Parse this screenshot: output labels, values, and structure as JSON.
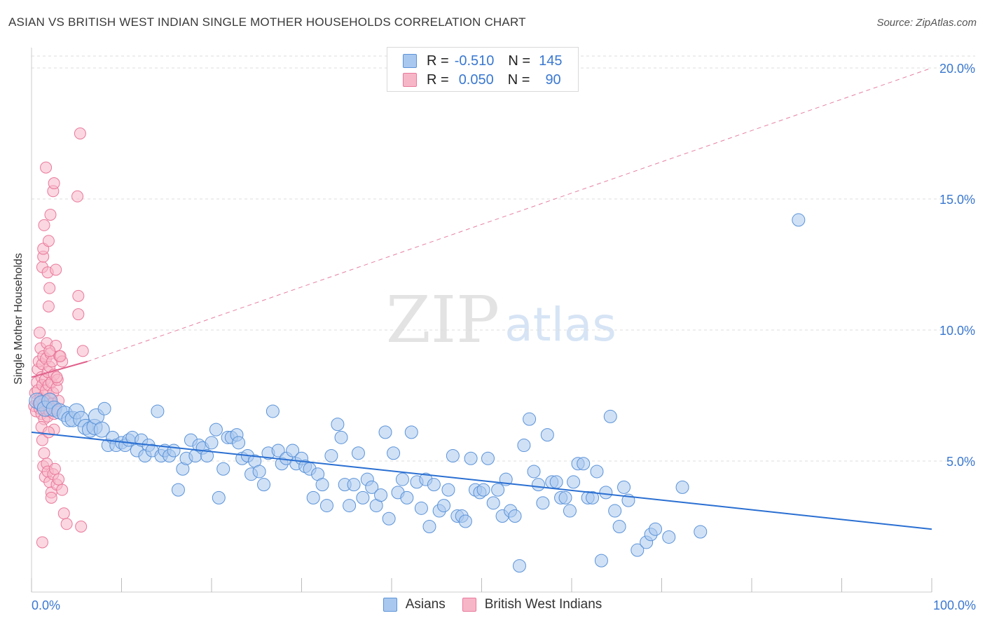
{
  "title": "ASIAN VS BRITISH WEST INDIAN SINGLE MOTHER HOUSEHOLDS CORRELATION CHART",
  "source": "Source: ZipAtlas.com",
  "watermark": {
    "zip": "ZIP",
    "atlas": "atlas"
  },
  "legend_top": {
    "rows": [
      {
        "r_label": "R =",
        "r_value": "-0.510",
        "n_label": "N =",
        "n_value": "145"
      },
      {
        "r_label": "R =",
        "r_value": "0.050",
        "n_label": "N =",
        "n_value": "90"
      }
    ]
  },
  "legend_bottom": {
    "asians": "Asians",
    "bwi": "British West Indians"
  },
  "colors": {
    "asian_fill": "#a9c8ef",
    "asian_stroke": "#5b93d8",
    "asian_line": "#2a6fd2",
    "bwi_fill": "#f7b6c8",
    "bwi_stroke": "#e9799b",
    "bwi_line": "#e0608b",
    "axis_label": "#3a78d0",
    "grid": "#dddddd"
  },
  "chart_data": {
    "type": "scatter",
    "title": "ASIAN VS BRITISH WEST INDIAN SINGLE MOTHER HOUSEHOLDS CORRELATION CHART",
    "xlabel": "",
    "ylabel": "Single Mother Households",
    "xlim": [
      0,
      100
    ],
    "ylim": [
      0,
      20
    ],
    "x_tick_labels": [
      "0.0%",
      "100.0%"
    ],
    "y_ticks": [
      5,
      10,
      15,
      20
    ],
    "y_tick_labels": [
      "5.0%",
      "10.0%",
      "15.0%",
      "20.0%"
    ],
    "grid": true,
    "legend": "top-center",
    "series": [
      {
        "name": "Asians",
        "r": -0.51,
        "n": 145,
        "trend": {
          "x": [
            0,
            100
          ],
          "y": [
            6.1,
            2.4
          ],
          "style": "solid"
        },
        "points": [
          [
            0.6,
            7.3
          ],
          [
            1.1,
            7.2
          ],
          [
            1.5,
            7.0
          ],
          [
            2.0,
            7.3
          ],
          [
            2.5,
            7.0
          ],
          [
            3.1,
            6.9
          ],
          [
            3.7,
            6.8
          ],
          [
            4.2,
            6.6
          ],
          [
            4.6,
            6.6
          ],
          [
            5.0,
            6.9
          ],
          [
            5.5,
            6.6
          ],
          [
            6.0,
            6.3
          ],
          [
            6.5,
            6.2
          ],
          [
            7.0,
            6.3
          ],
          [
            7.2,
            6.7
          ],
          [
            7.8,
            6.2
          ],
          [
            8.1,
            7.0
          ],
          [
            8.5,
            5.6
          ],
          [
            9.0,
            5.9
          ],
          [
            9.4,
            5.6
          ],
          [
            10.0,
            5.7
          ],
          [
            10.4,
            5.6
          ],
          [
            10.8,
            5.8
          ],
          [
            11.2,
            5.9
          ],
          [
            11.7,
            5.4
          ],
          [
            12.2,
            5.8
          ],
          [
            12.6,
            5.2
          ],
          [
            13.0,
            5.6
          ],
          [
            13.4,
            5.4
          ],
          [
            14.0,
            6.9
          ],
          [
            14.4,
            5.2
          ],
          [
            14.8,
            5.4
          ],
          [
            15.3,
            5.2
          ],
          [
            15.8,
            5.4
          ],
          [
            16.3,
            3.9
          ],
          [
            16.8,
            4.7
          ],
          [
            17.2,
            5.1
          ],
          [
            17.7,
            5.8
          ],
          [
            18.2,
            5.2
          ],
          [
            18.6,
            5.6
          ],
          [
            19.0,
            5.5
          ],
          [
            19.5,
            5.2
          ],
          [
            20.0,
            5.7
          ],
          [
            20.5,
            6.2
          ],
          [
            20.8,
            3.6
          ],
          [
            21.3,
            4.7
          ],
          [
            21.8,
            5.9
          ],
          [
            22.2,
            5.9
          ],
          [
            22.8,
            6.0
          ],
          [
            23.0,
            5.7
          ],
          [
            23.4,
            5.1
          ],
          [
            24.0,
            5.2
          ],
          [
            24.4,
            4.5
          ],
          [
            24.8,
            5.0
          ],
          [
            25.3,
            4.6
          ],
          [
            25.8,
            4.1
          ],
          [
            26.3,
            5.3
          ],
          [
            26.8,
            6.9
          ],
          [
            27.4,
            5.4
          ],
          [
            27.8,
            4.9
          ],
          [
            28.3,
            5.1
          ],
          [
            29.0,
            5.4
          ],
          [
            29.4,
            4.9
          ],
          [
            30.0,
            5.1
          ],
          [
            30.4,
            4.8
          ],
          [
            30.9,
            4.7
          ],
          [
            31.3,
            3.6
          ],
          [
            31.8,
            4.5
          ],
          [
            32.3,
            4.1
          ],
          [
            32.8,
            3.3
          ],
          [
            33.3,
            5.2
          ],
          [
            34.0,
            6.4
          ],
          [
            34.4,
            5.9
          ],
          [
            34.8,
            4.1
          ],
          [
            35.3,
            3.3
          ],
          [
            35.8,
            4.1
          ],
          [
            36.3,
            5.3
          ],
          [
            36.8,
            3.6
          ],
          [
            37.3,
            4.3
          ],
          [
            37.8,
            4.0
          ],
          [
            38.3,
            3.3
          ],
          [
            38.8,
            3.7
          ],
          [
            39.3,
            6.1
          ],
          [
            39.7,
            2.8
          ],
          [
            40.2,
            5.3
          ],
          [
            40.7,
            3.8
          ],
          [
            41.2,
            4.3
          ],
          [
            41.7,
            3.6
          ],
          [
            42.2,
            6.1
          ],
          [
            42.8,
            4.2
          ],
          [
            43.3,
            3.2
          ],
          [
            43.8,
            4.3
          ],
          [
            44.2,
            2.5
          ],
          [
            44.7,
            4.1
          ],
          [
            45.3,
            3.1
          ],
          [
            45.8,
            3.3
          ],
          [
            46.3,
            3.9
          ],
          [
            46.8,
            5.2
          ],
          [
            47.3,
            2.9
          ],
          [
            47.8,
            2.9
          ],
          [
            48.2,
            2.7
          ],
          [
            48.8,
            5.1
          ],
          [
            49.3,
            3.9
          ],
          [
            49.8,
            3.8
          ],
          [
            50.2,
            3.9
          ],
          [
            50.7,
            5.1
          ],
          [
            51.3,
            3.4
          ],
          [
            51.8,
            3.9
          ],
          [
            52.3,
            2.9
          ],
          [
            52.7,
            4.3
          ],
          [
            53.2,
            3.1
          ],
          [
            53.7,
            2.9
          ],
          [
            54.2,
            1.0
          ],
          [
            54.7,
            5.6
          ],
          [
            55.3,
            6.6
          ],
          [
            55.8,
            4.6
          ],
          [
            56.3,
            4.1
          ],
          [
            56.8,
            3.4
          ],
          [
            57.3,
            6.0
          ],
          [
            57.8,
            4.2
          ],
          [
            58.3,
            4.2
          ],
          [
            58.8,
            3.6
          ],
          [
            59.3,
            3.6
          ],
          [
            59.8,
            3.1
          ],
          [
            60.2,
            4.2
          ],
          [
            60.7,
            4.9
          ],
          [
            61.3,
            4.9
          ],
          [
            61.8,
            3.6
          ],
          [
            62.3,
            3.6
          ],
          [
            62.8,
            4.6
          ],
          [
            63.3,
            1.2
          ],
          [
            63.8,
            3.8
          ],
          [
            64.3,
            6.7
          ],
          [
            64.8,
            3.1
          ],
          [
            65.3,
            2.5
          ],
          [
            65.8,
            4.0
          ],
          [
            66.3,
            3.5
          ],
          [
            67.3,
            1.6
          ],
          [
            68.3,
            1.9
          ],
          [
            68.8,
            2.2
          ],
          [
            69.3,
            2.4
          ],
          [
            70.8,
            2.1
          ],
          [
            72.3,
            4.0
          ],
          [
            74.3,
            2.3
          ],
          [
            85.2,
            14.2
          ]
        ]
      },
      {
        "name": "British West Indians",
        "r": 0.05,
        "n": 90,
        "trend": {
          "x": [
            0,
            6.2
          ],
          "y": [
            8.2,
            8.8
          ],
          "style": "solid",
          "extension": {
            "x": [
              6.2,
              100
            ],
            "y": [
              8.8,
              20.0
            ],
            "style": "dashed"
          }
        },
        "points": [
          [
            0.3,
            7.1
          ],
          [
            0.4,
            7.6
          ],
          [
            0.5,
            6.9
          ],
          [
            0.6,
            8.0
          ],
          [
            0.6,
            7.3
          ],
          [
            0.7,
            8.5
          ],
          [
            0.7,
            7.7
          ],
          [
            0.8,
            7.2
          ],
          [
            0.8,
            8.8
          ],
          [
            0.9,
            7.0
          ],
          [
            1.0,
            7.4
          ],
          [
            1.0,
            9.3
          ],
          [
            1.1,
            8.2
          ],
          [
            1.1,
            6.8
          ],
          [
            1.2,
            7.9
          ],
          [
            1.2,
            8.7
          ],
          [
            1.3,
            7.2
          ],
          [
            1.3,
            9.0
          ],
          [
            1.4,
            7.5
          ],
          [
            1.4,
            6.6
          ],
          [
            1.5,
            8.1
          ],
          [
            1.5,
            7.0
          ],
          [
            1.6,
            7.7
          ],
          [
            1.6,
            8.9
          ],
          [
            1.7,
            7.3
          ],
          [
            1.7,
            9.5
          ],
          [
            1.8,
            6.7
          ],
          [
            1.8,
            8.4
          ],
          [
            1.9,
            7.1
          ],
          [
            1.9,
            7.9
          ],
          [
            2.0,
            8.6
          ],
          [
            2.0,
            6.9
          ],
          [
            2.1,
            7.4
          ],
          [
            2.1,
            9.1
          ],
          [
            2.2,
            8.0
          ],
          [
            2.3,
            7.2
          ],
          [
            2.3,
            8.8
          ],
          [
            2.4,
            7.6
          ],
          [
            2.5,
            6.8
          ],
          [
            2.5,
            8.3
          ],
          [
            2.6,
            7.0
          ],
          [
            2.7,
            9.4
          ],
          [
            2.8,
            7.8
          ],
          [
            2.9,
            8.1
          ],
          [
            3.0,
            7.3
          ],
          [
            0.9,
            9.9
          ],
          [
            1.2,
            12.4
          ],
          [
            1.3,
            12.8
          ],
          [
            1.3,
            13.1
          ],
          [
            1.4,
            14.0
          ],
          [
            1.6,
            16.2
          ],
          [
            1.8,
            12.2
          ],
          [
            1.9,
            13.4
          ],
          [
            2.0,
            11.6
          ],
          [
            1.9,
            10.9
          ],
          [
            2.1,
            14.4
          ],
          [
            2.4,
            15.3
          ],
          [
            2.5,
            15.6
          ],
          [
            2.7,
            12.3
          ],
          [
            5.1,
            15.1
          ],
          [
            5.4,
            17.5
          ],
          [
            5.2,
            11.3
          ],
          [
            5.2,
            10.6
          ],
          [
            5.7,
            9.2
          ],
          [
            3.1,
            9.0
          ],
          [
            3.4,
            8.8
          ],
          [
            1.1,
            6.3
          ],
          [
            1.2,
            5.8
          ],
          [
            1.4,
            5.3
          ],
          [
            1.3,
            4.8
          ],
          [
            1.5,
            4.4
          ],
          [
            1.7,
            4.9
          ],
          [
            1.8,
            4.6
          ],
          [
            2.0,
            4.2
          ],
          [
            2.2,
            3.8
          ],
          [
            2.2,
            3.6
          ],
          [
            2.4,
            4.5
          ],
          [
            2.6,
            4.7
          ],
          [
            2.8,
            4.1
          ],
          [
            3.0,
            4.3
          ],
          [
            3.4,
            3.9
          ],
          [
            3.6,
            3.0
          ],
          [
            3.9,
            2.6
          ],
          [
            5.5,
            2.5
          ],
          [
            1.2,
            1.9
          ],
          [
            2.5,
            6.2
          ],
          [
            1.9,
            6.1
          ],
          [
            2.8,
            8.2
          ],
          [
            3.2,
            9.0
          ],
          [
            2.0,
            9.2
          ]
        ]
      }
    ]
  }
}
